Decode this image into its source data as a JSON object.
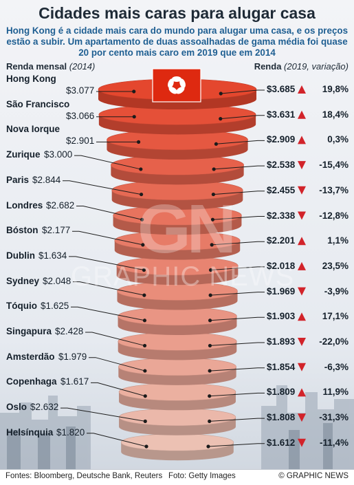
{
  "title": "Cidades mais caras para alugar casa",
  "subtitle": "Hong Kong é a cidade mais cara do mundo para alugar uma casa, e os preços estão a subir. Um apartamento de duas assoalhadas de gama média foi quase 20 por cento mais caro em 2019 que em 2014",
  "header_left": {
    "label": "Renda mensal",
    "note": "(2014)"
  },
  "header_right": {
    "label": "Renda",
    "note": "(2019, variação)"
  },
  "watermark": {
    "logo": "GN",
    "text": "GRAPHIC NEWS"
  },
  "footer": {
    "sources": "Fontes: Bloomberg, Deutsche Bank, Reuters",
    "photo": "Foto: Getty Images",
    "copyright": "© GRAPHIC NEWS"
  },
  "colors": {
    "up": "#d2232a",
    "down": "#d2232a",
    "disc_top": "#e4472e",
    "disc_bottom": "#ecc1b3",
    "flag": "#de2910"
  },
  "icons": {
    "up": "triangle-up-icon",
    "down": "triangle-down-icon",
    "flag": "hong-kong-flag-icon"
  },
  "chart_data": {
    "type": "table",
    "series": [
      {
        "name": "Renda mensal (2014)",
        "values": [
          3077,
          3066,
          2901,
          3000,
          2844,
          2682,
          2177,
          1634,
          2048,
          1625,
          2428,
          1979,
          1617,
          2632,
          1820
        ]
      },
      {
        "name": "Renda (2019)",
        "values": [
          3685,
          3631,
          2909,
          2538,
          2455,
          2338,
          2201,
          2018,
          1969,
          1903,
          1893,
          1854,
          1809,
          1808,
          1612
        ]
      }
    ],
    "rows": [
      {
        "city": "Hong Kong",
        "rent_2014": "$3.077",
        "rent_2019": "$3.685",
        "change": "19,8%",
        "change_value": 19.8,
        "direction": "up"
      },
      {
        "city": "São Francisco",
        "rent_2014": "$3.066",
        "rent_2019": "$3.631",
        "change": "18,4%",
        "change_value": 18.4,
        "direction": "up"
      },
      {
        "city": "Nova Iorque",
        "rent_2014": "$2.901",
        "rent_2019": "$2.909",
        "change": "0,3%",
        "change_value": 0.3,
        "direction": "up"
      },
      {
        "city": "Zurique",
        "rent_2014": "$3.000",
        "rent_2019": "$2.538",
        "change": "-15,4%",
        "change_value": -15.4,
        "direction": "down"
      },
      {
        "city": "Paris",
        "rent_2014": "$2.844",
        "rent_2019": "$2.455",
        "change": "-13,7%",
        "change_value": -13.7,
        "direction": "down"
      },
      {
        "city": "Londres",
        "rent_2014": "$2.682",
        "rent_2019": "$2.338",
        "change": "-12,8%",
        "change_value": -12.8,
        "direction": "down"
      },
      {
        "city": "Bóston",
        "rent_2014": "$2.177",
        "rent_2019": "$2.201",
        "change": "1,1%",
        "change_value": 1.1,
        "direction": "up"
      },
      {
        "city": "Dublin",
        "rent_2014": "$1.634",
        "rent_2019": "$2.018",
        "change": "23,5%",
        "change_value": 23.5,
        "direction": "up"
      },
      {
        "city": "Sydney",
        "rent_2014": "$2.048",
        "rent_2019": "$1.969",
        "change": "-3,9%",
        "change_value": -3.9,
        "direction": "down"
      },
      {
        "city": "Tóquio",
        "rent_2014": "$1.625",
        "rent_2019": "$1.903",
        "change": "17,1%",
        "change_value": 17.1,
        "direction": "up"
      },
      {
        "city": "Singapura",
        "rent_2014": "$2.428",
        "rent_2019": "$1.893",
        "change": "-22,0%",
        "change_value": -22.0,
        "direction": "down"
      },
      {
        "city": "Amsterdão",
        "rent_2014": "$1.979",
        "rent_2019": "$1.854",
        "change": "-6,3%",
        "change_value": -6.3,
        "direction": "down"
      },
      {
        "city": "Copenhaga",
        "rent_2014": "$1.617",
        "rent_2019": "$1.809",
        "change": "11,9%",
        "change_value": 11.9,
        "direction": "up"
      },
      {
        "city": "Oslo",
        "rent_2014": "$2.632",
        "rent_2019": "$1.808",
        "change": "-31,3%",
        "change_value": -31.3,
        "direction": "down"
      },
      {
        "city": "Helsínquia",
        "rent_2014": "$1.820",
        "rent_2019": "$1.612",
        "change": "-11,4%",
        "change_value": -11.4,
        "direction": "down"
      }
    ]
  }
}
